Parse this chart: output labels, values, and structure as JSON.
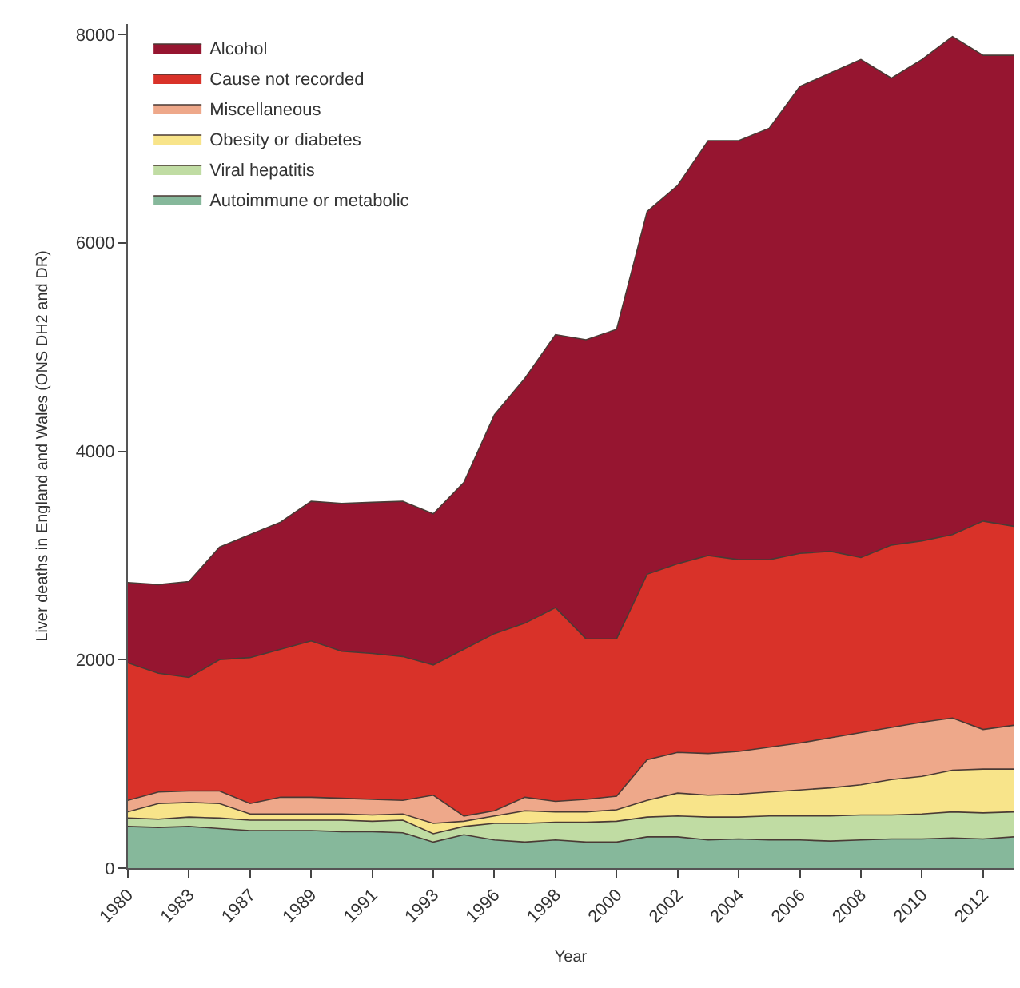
{
  "chart_data": {
    "type": "area",
    "stacked": true,
    "xlabel": "Year",
    "ylabel": "Liver deaths in England and Wales (ONS DH2 and DR)",
    "categories": [
      "1980",
      null,
      "1983",
      null,
      "1987",
      null,
      "1989",
      null,
      "1991",
      null,
      "1993",
      null,
      "1996",
      null,
      "1998",
      null,
      "2000",
      null,
      "2002",
      null,
      "2004",
      null,
      "2006",
      null,
      "2008",
      null,
      "2010",
      null,
      "2012",
      null
    ],
    "ylim": [
      0,
      8100
    ],
    "yticks": [
      0,
      2000,
      4000,
      6000,
      8000
    ],
    "legend": "top left",
    "series": [
      {
        "name": "Autoimmune or metabolic",
        "color": "#86b89b",
        "values": [
          400,
          390,
          400,
          380,
          360,
          360,
          360,
          350,
          350,
          340,
          250,
          320,
          270,
          250,
          270,
          250,
          250,
          300,
          300,
          270,
          280,
          270,
          270,
          260,
          270,
          280,
          280,
          290,
          280,
          300
        ]
      },
      {
        "name": "Viral hepatitis",
        "color": "#c0dca3",
        "values": [
          80,
          80,
          90,
          100,
          100,
          100,
          100,
          110,
          100,
          120,
          80,
          80,
          160,
          180,
          170,
          190,
          200,
          190,
          200,
          220,
          210,
          230,
          230,
          240,
          240,
          230,
          240,
          250,
          250,
          240
        ]
      },
      {
        "name": "Obesity or diabetes",
        "color": "#f8e48a",
        "values": [
          60,
          150,
          140,
          140,
          60,
          60,
          60,
          60,
          60,
          60,
          100,
          50,
          70,
          120,
          100,
          100,
          110,
          160,
          220,
          210,
          220,
          230,
          250,
          270,
          290,
          340,
          360,
          400,
          420,
          410
        ]
      },
      {
        "name": "Miscellaneous",
        "color": "#eea88a",
        "values": [
          110,
          110,
          110,
          120,
          100,
          160,
          160,
          150,
          150,
          130,
          270,
          50,
          50,
          130,
          100,
          120,
          130,
          390,
          390,
          400,
          410,
          430,
          450,
          480,
          500,
          500,
          520,
          500,
          380,
          420
        ]
      },
      {
        "name": "Cause not recorded",
        "color": "#d93229",
        "values": [
          1320,
          1140,
          1090,
          1260,
          1400,
          1420,
          1500,
          1410,
          1400,
          1380,
          1250,
          1600,
          1700,
          1670,
          1860,
          1540,
          1510,
          1780,
          1810,
          1900,
          1840,
          1800,
          1820,
          1790,
          1680,
          1750,
          1740,
          1760,
          2000,
          1910
        ]
      },
      {
        "name": "Alcohol",
        "color": "#961530",
        "values": [
          770,
          850,
          920,
          1080,
          1180,
          1220,
          1340,
          1420,
          1450,
          1490,
          1450,
          1600,
          2100,
          2350,
          2620,
          2870,
          2970,
          3480,
          3630,
          3980,
          4020,
          4140,
          4480,
          4590,
          4780,
          4480,
          4620,
          4780,
          4470,
          4520
        ]
      }
    ]
  }
}
